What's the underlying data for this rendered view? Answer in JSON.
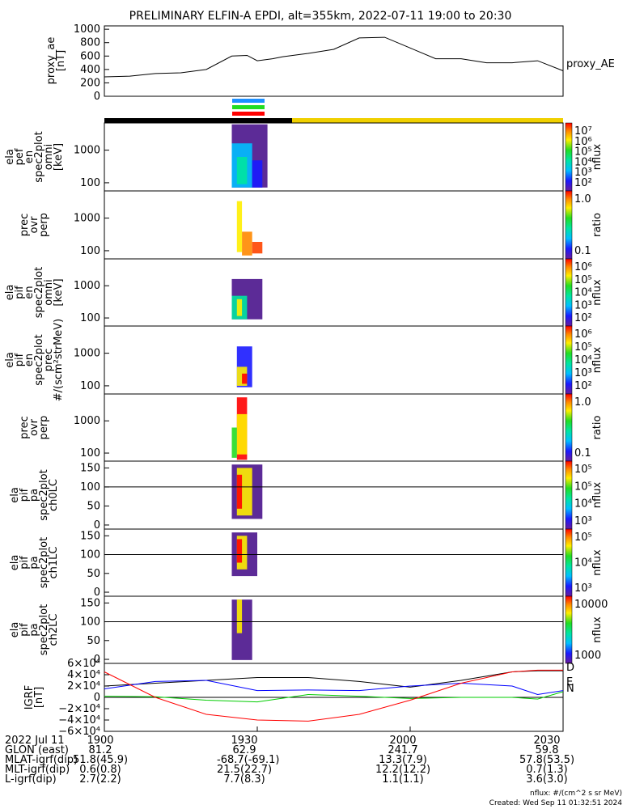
{
  "title": "PRELIMINARY ELFIN-A EPDI, alt=355km, 2022-07-11 19:00 to 20:30",
  "chart_data": [
    {
      "type": "line",
      "ylabel": [
        "proxy_ae",
        "[nT]"
      ],
      "legend": "proxy_AE",
      "yticks": [
        "1000",
        "800",
        "600",
        "400",
        "200",
        "0"
      ],
      "ylim": [
        0,
        1050
      ],
      "x_minutes": [
        0,
        5,
        10,
        15,
        20,
        25,
        28,
        30,
        33,
        35,
        38,
        40,
        45,
        50,
        55,
        60,
        65,
        70,
        75,
        80,
        85,
        90
      ],
      "values": [
        290,
        300,
        340,
        350,
        400,
        600,
        610,
        530,
        560,
        590,
        620,
        640,
        700,
        870,
        880,
        720,
        560,
        560,
        500,
        500,
        530,
        380
      ]
    },
    {
      "type": "heatmap",
      "ylabel": [
        "ela",
        "pef",
        "en",
        "spec2plot",
        "omni",
        "[keV]"
      ],
      "yticks": [
        "1000",
        "100"
      ],
      "colorbar_ticks": [
        "10⁷",
        "10⁶",
        "10⁵",
        "10⁴",
        "10³",
        "10²"
      ],
      "colorbar_label": "nflux"
    },
    {
      "type": "heatmap",
      "ylabel": [
        "prec",
        "ovr",
        "perp"
      ],
      "yticks": [
        "1000",
        "100"
      ],
      "colorbar_ticks": [
        "1.0",
        "0.1"
      ],
      "colorbar_label": "ratio"
    },
    {
      "type": "heatmap",
      "ylabel": [
        "ela",
        "pif",
        "en",
        "spec2plot",
        "omni",
        "[keV]"
      ],
      "yticks": [
        "1000",
        "100"
      ],
      "colorbar_ticks": [
        "10⁶",
        "10⁵",
        "10⁴",
        "10³",
        "10²"
      ],
      "colorbar_label": "nflux"
    },
    {
      "type": "heatmap",
      "ylabel": [
        "ela",
        "pif",
        "en",
        "spec2plot",
        "prec",
        "#/(scm²strMeV)"
      ],
      "yticks": [
        "1000",
        "100"
      ],
      "colorbar_ticks": [
        "10⁶",
        "10⁵",
        "10⁴",
        "10³",
        "10²"
      ],
      "colorbar_label": "nflux"
    },
    {
      "type": "heatmap",
      "ylabel": [
        "prec",
        "ovr",
        "perp"
      ],
      "yticks": [
        "1000",
        "100"
      ],
      "colorbar_ticks": [
        "1.0",
        "0.1"
      ],
      "colorbar_label": "ratio"
    },
    {
      "type": "heatmap",
      "ylabel": [
        "ela",
        "pif",
        "pa",
        "spec2plot",
        "ch0LC"
      ],
      "yticks": [
        "150",
        "100",
        "50",
        "0"
      ],
      "colorbar_ticks": [
        "10⁵",
        "10⁵",
        "10⁴",
        "10³"
      ],
      "colorbar_label": "nflux"
    },
    {
      "type": "heatmap",
      "ylabel": [
        "ela",
        "pif",
        "pa",
        "spec2plot",
        "ch1LC"
      ],
      "yticks": [
        "150",
        "100",
        "50",
        "0"
      ],
      "colorbar_ticks": [
        "10⁵",
        "10⁴",
        "10³"
      ],
      "colorbar_label": "nflux"
    },
    {
      "type": "heatmap",
      "ylabel": [
        "ela",
        "pif",
        "pa",
        "spec2plot",
        "ch2LC"
      ],
      "yticks": [
        "150",
        "100",
        "50",
        "0"
      ],
      "colorbar_ticks": [
        "10000",
        "1000"
      ],
      "colorbar_label": "nflux"
    },
    {
      "type": "line",
      "ylabel": [
        "IGRF",
        "[nT]"
      ],
      "yticks": [
        "6×10⁴",
        "4×10⁴",
        "2×10⁴",
        "0",
        "−2×10⁴",
        "−4×10⁴",
        "−6×10⁴"
      ],
      "ylim": [
        -60000,
        60000
      ],
      "legend": [
        "D",
        "E",
        "N"
      ],
      "x_minutes": [
        0,
        10,
        20,
        30,
        40,
        50,
        60,
        70,
        80,
        85,
        90
      ],
      "series": [
        {
          "color": "#000000",
          "values": [
            20000,
            25000,
            30000,
            35000,
            35000,
            28000,
            18000,
            30000,
            45000,
            47000,
            47000
          ]
        },
        {
          "color": "#0000ff",
          "values": [
            15000,
            28000,
            30000,
            12000,
            13000,
            12000,
            20000,
            25000,
            20000,
            5000,
            12000
          ]
        },
        {
          "color": "#00cc00",
          "values": [
            2000,
            1000,
            -5000,
            -8000,
            5000,
            2000,
            -2000,
            0,
            0,
            -3000,
            10000
          ]
        },
        {
          "color": "#ff0000",
          "values": [
            45000,
            0,
            -30000,
            -40000,
            -42000,
            -30000,
            -5000,
            25000,
            45000,
            48000,
            48000
          ]
        }
      ]
    }
  ],
  "xaxis": {
    "ticks": [
      "1900",
      "1930",
      "2000",
      "2030"
    ],
    "rows": [
      {
        "label": "2022 Jul 11",
        "values": [
          "1900",
          "1930",
          "2000",
          "2030"
        ]
      },
      {
        "label": "GLON (east)",
        "values": [
          "81.2",
          "62.9",
          "241.7",
          "59.8"
        ]
      },
      {
        "label": "MLAT-igrf(dip)",
        "values": [
          "51.8(45.9)",
          "-68.7(-69.1)",
          "13.3(7.9)",
          "57.8(53.5)"
        ]
      },
      {
        "label": "MLT-igrf(dip)",
        "values": [
          "0.6(0.8)",
          "21.5(22.7)",
          "12.2(12.2)",
          "0.7(1.3)"
        ]
      },
      {
        "label": "L-igrf(dip)",
        "values": [
          "2.7(2.2)",
          "7.7(8.3)",
          "1.1(1.1)",
          "3.6(3.0)"
        ]
      }
    ]
  },
  "footer": {
    "units": "nflux: #/(cm^2 s sr MeV)",
    "created": "Created: Wed Sep 11 01:32:51 2024"
  },
  "colors": {
    "eclipse_dark": "#000000",
    "eclipse_sun": "#f0d000",
    "bar_blue": "#1e90ff",
    "bar_green": "#22dd22",
    "bar_red": "#ff0000"
  }
}
